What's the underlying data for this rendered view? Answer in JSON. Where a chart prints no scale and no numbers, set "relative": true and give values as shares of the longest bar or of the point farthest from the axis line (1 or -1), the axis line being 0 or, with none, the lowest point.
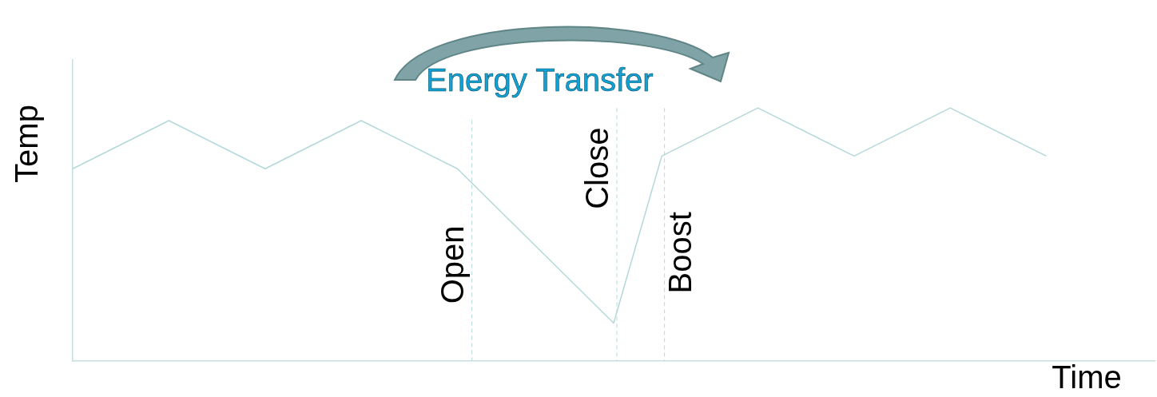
{
  "chart_data": {
    "type": "line",
    "relative": true,
    "xlabel": "Time",
    "ylabel": "Temp",
    "annotations": [
      "Energy Transfer"
    ],
    "categories": [
      null,
      null,
      null,
      null,
      null,
      null,
      null,
      null,
      null,
      null,
      null,
      null,
      null,
      null,
      null,
      null,
      null,
      null,
      null,
      null,
      null,
      null,
      null,
      null,
      null,
      null,
      null,
      null,
      null,
      null,
      null,
      null,
      null,
      null,
      null,
      null,
      null,
      null,
      null,
      null,
      null,
      null,
      null,
      null,
      null,
      null,
      null,
      null,
      null,
      null,
      null,
      null,
      null,
      null,
      null,
      null,
      null,
      null,
      null,
      null,
      null,
      null,
      null,
      null,
      null,
      null,
      null,
      null,
      null,
      null,
      null,
      null,
      null,
      null,
      null,
      null,
      null,
      null,
      null,
      null,
      null,
      null,
      null,
      null,
      null,
      null,
      null,
      null,
      null,
      null,
      null
    ],
    "series": [
      {
        "color": "#b4d8da",
        "values": [
          0.76,
          null,
          null,
          null,
          null,
          null,
          null,
          null,
          0.95,
          null,
          null,
          null,
          null,
          null,
          null,
          null,
          0.76,
          null,
          null,
          null,
          null,
          null,
          null,
          null,
          0.95,
          null,
          null,
          null,
          null,
          null,
          null,
          null,
          0.76,
          null,
          null,
          null,
          null,
          null,
          null,
          null,
          null,
          null,
          null,
          null,
          null,
          0.15,
          null,
          null,
          null,
          0.81,
          null,
          null,
          null,
          null,
          null,
          null,
          null,
          1.0,
          null,
          null,
          null,
          null,
          null,
          null,
          null,
          0.81,
          null,
          null,
          null,
          null,
          null,
          null,
          null,
          1.0,
          null,
          null,
          null,
          null,
          null,
          null,
          null,
          0.81,
          null,
          null,
          null,
          null,
          null,
          null,
          null,
          null,
          null
        ]
      }
    ],
    "ref_lines": [
      {
        "axis": "x",
        "label": "Open",
        "color": "#b4d8da",
        "line_style": "dashed"
      },
      {
        "axis": "x",
        "label": "Close",
        "color": "#b4d8da",
        "line_style": "dashed"
      },
      {
        "axis": "x",
        "label": "Boost",
        "color": "#b4d8da",
        "line_style": "dashed"
      }
    ],
    "grid": false,
    "legend": false,
    "marker": "none",
    "line_style": "solid"
  }
}
